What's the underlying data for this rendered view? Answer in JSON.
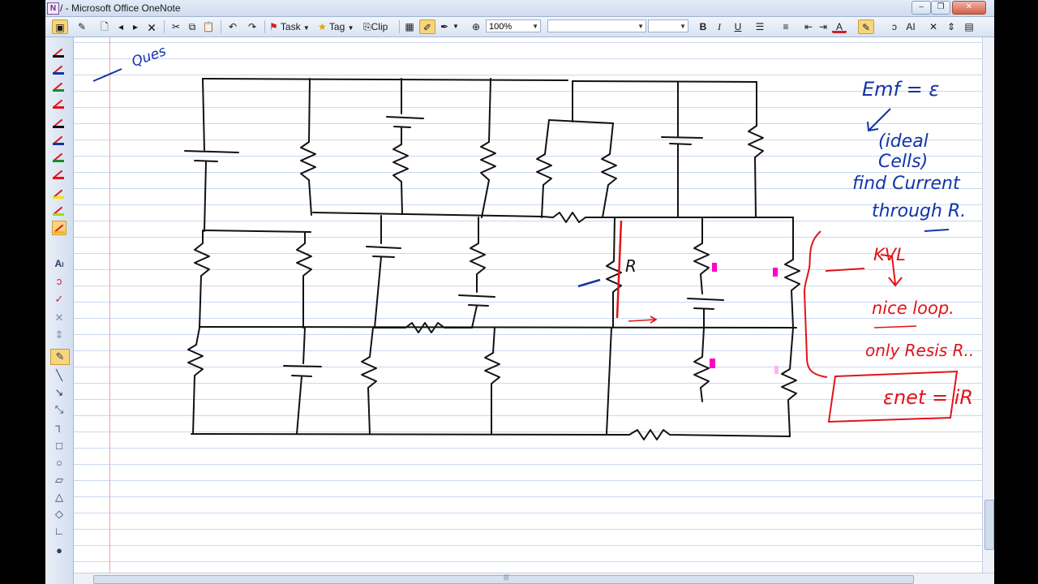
{
  "window": {
    "title": "/ - Microsoft Office OneNote",
    "app_icon": "onenote-icon",
    "buttons": [
      "minimize-icon",
      "restore-icon",
      "close-icon"
    ]
  },
  "toolbar": {
    "task_label": "Task",
    "tag_label": "Tag",
    "clip_label": "Clip",
    "zoom_value": "100%",
    "font_value": "",
    "size_value": "",
    "bold_label": "B",
    "italic_label": "I",
    "underline_label": "U"
  },
  "notes": {
    "page_heading": "Ques",
    "label_R": "R",
    "emf_line": "Emf = ε",
    "ideal_cells": "(ideal Cells)",
    "find_line1": "find Current",
    "find_line2": "through R.",
    "kvl": "KVL",
    "nice_loop": "nice loop.",
    "only_resis": "only Resis R..",
    "formula": "εnet = iR"
  },
  "colors": {
    "blue_ink": "#1234a8",
    "red_ink": "#e0141a",
    "black_ink": "#111111",
    "magenta": "#ff00c8"
  }
}
